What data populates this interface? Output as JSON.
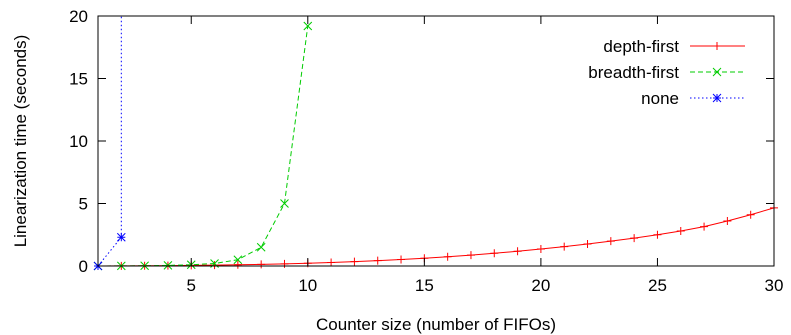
{
  "chart_data": {
    "type": "line",
    "title": "",
    "xlabel": "Counter size (number of FIFOs)",
    "ylabel": "Linearization time (seconds)",
    "xlim": [
      1,
      30
    ],
    "ylim": [
      0,
      20
    ],
    "x_ticks": [
      5,
      10,
      15,
      20,
      25,
      30
    ],
    "y_ticks": [
      0,
      5,
      10,
      15,
      20
    ],
    "grid": false,
    "legend_position": "top-right",
    "series": [
      {
        "name": "depth-first",
        "color": "#ff0000",
        "dash": "solid",
        "marker": "plus",
        "x": [
          1,
          2,
          3,
          4,
          5,
          6,
          7,
          8,
          9,
          10,
          11,
          12,
          13,
          14,
          15,
          16,
          17,
          18,
          19,
          20,
          21,
          22,
          23,
          24,
          25,
          26,
          27,
          28,
          29,
          30
        ],
        "y": [
          0,
          0.01,
          0.02,
          0.03,
          0.05,
          0.07,
          0.1,
          0.13,
          0.17,
          0.22,
          0.28,
          0.35,
          0.43,
          0.52,
          0.62,
          0.74,
          0.87,
          1.02,
          1.18,
          1.36,
          1.55,
          1.76,
          1.99,
          2.23,
          2.5,
          2.8,
          3.15,
          3.6,
          4.1,
          4.65
        ]
      },
      {
        "name": "breadth-first",
        "color": "#00cc00",
        "dash": "dashed",
        "marker": "x",
        "x": [
          1,
          2,
          3,
          4,
          5,
          6,
          7,
          8,
          9,
          10
        ],
        "y": [
          0,
          0.01,
          0.02,
          0.05,
          0.1,
          0.2,
          0.5,
          1.5,
          5.0,
          19.2
        ]
      },
      {
        "name": "none",
        "color": "#0000ff",
        "dash": "dotted",
        "marker": "star",
        "x": [
          1,
          2,
          2
        ],
        "y": [
          0,
          2.3,
          20
        ],
        "marker_at": [
          0,
          1
        ]
      }
    ]
  }
}
